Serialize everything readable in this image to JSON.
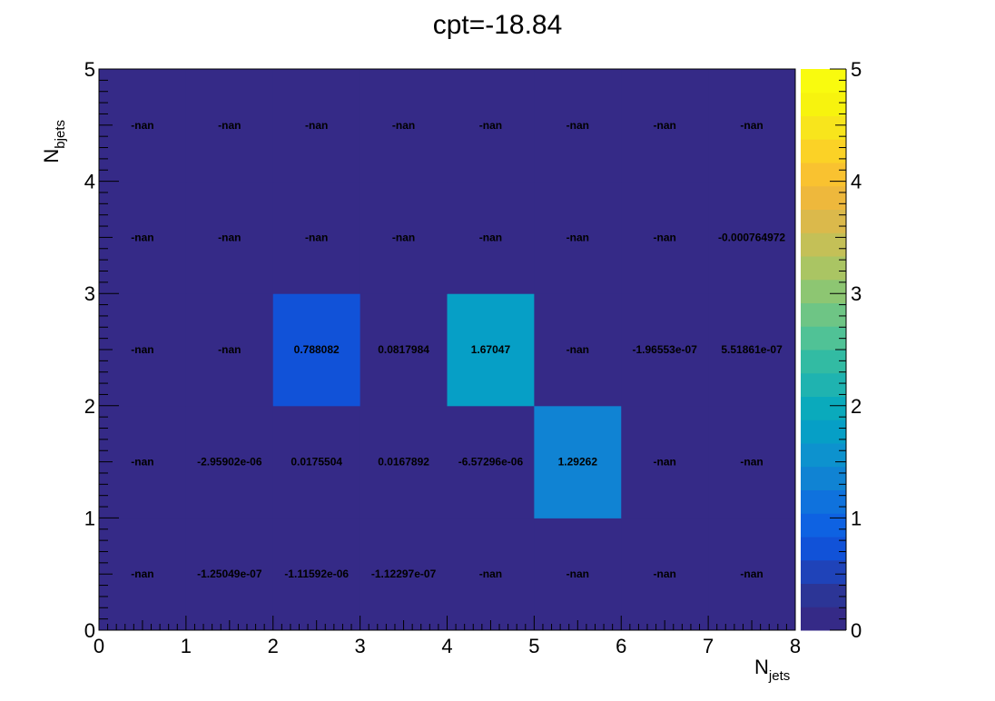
{
  "chart_data": {
    "type": "heatmap",
    "title": "cpt=-18.84",
    "xlabel": {
      "main": "N",
      "sub": "jets"
    },
    "ylabel": {
      "main": "N",
      "sub": "bjets"
    },
    "xlim": [
      0,
      8
    ],
    "ylim": [
      0,
      5
    ],
    "zlim": [
      0,
      5
    ],
    "x_ticks": [
      "0",
      "1",
      "2",
      "3",
      "4",
      "5",
      "6",
      "7",
      "8"
    ],
    "y_ticks": [
      "0",
      "1",
      "2",
      "3",
      "4",
      "5"
    ],
    "z_ticks": [
      "0",
      "1",
      "2",
      "3",
      "4",
      "5"
    ],
    "palette": [
      "#352a87",
      "#2c3596",
      "#1f43b9",
      "#1152d8",
      "#0e62e2",
      "#0f72dd",
      "#1083d3",
      "#0d92ce",
      "#069fc6",
      "#0aaabc",
      "#1fb3b0",
      "#32bba3",
      "#50c296",
      "#6ec585",
      "#8dc672",
      "#aac563",
      "#c4c057",
      "#dbb94b",
      "#eeb83c",
      "#f9c230",
      "#fbd226",
      "#f8e51c",
      "#f7f30e",
      "#f9fb0e"
    ],
    "cells": [
      {
        "x": 0,
        "y": 0,
        "value": null,
        "label": "-nan"
      },
      {
        "x": 1,
        "y": 0,
        "value": -1.25049e-07,
        "label": "-1.25049e-07"
      },
      {
        "x": 2,
        "y": 0,
        "value": -1.11592e-06,
        "label": "-1.11592e-06"
      },
      {
        "x": 3,
        "y": 0,
        "value": -1.12297e-07,
        "label": "-1.12297e-07"
      },
      {
        "x": 4,
        "y": 0,
        "value": null,
        "label": "-nan"
      },
      {
        "x": 5,
        "y": 0,
        "value": null,
        "label": "-nan"
      },
      {
        "x": 6,
        "y": 0,
        "value": null,
        "label": "-nan"
      },
      {
        "x": 7,
        "y": 0,
        "value": null,
        "label": "-nan"
      },
      {
        "x": 0,
        "y": 1,
        "value": null,
        "label": "-nan"
      },
      {
        "x": 1,
        "y": 1,
        "value": -2.95902e-06,
        "label": "-2.95902e-06"
      },
      {
        "x": 2,
        "y": 1,
        "value": 0.0175504,
        "label": "0.0175504"
      },
      {
        "x": 3,
        "y": 1,
        "value": 0.0167892,
        "label": "0.0167892"
      },
      {
        "x": 4,
        "y": 1,
        "value": -6.57296e-06,
        "label": "-6.57296e-06"
      },
      {
        "x": 5,
        "y": 1,
        "value": 1.29262,
        "label": "1.29262"
      },
      {
        "x": 6,
        "y": 1,
        "value": null,
        "label": "-nan"
      },
      {
        "x": 7,
        "y": 1,
        "value": null,
        "label": "-nan"
      },
      {
        "x": 0,
        "y": 2,
        "value": null,
        "label": "-nan"
      },
      {
        "x": 1,
        "y": 2,
        "value": null,
        "label": "-nan"
      },
      {
        "x": 2,
        "y": 2,
        "value": 0.788082,
        "label": "0.788082"
      },
      {
        "x": 3,
        "y": 2,
        "value": 0.0817984,
        "label": "0.0817984"
      },
      {
        "x": 4,
        "y": 2,
        "value": 1.67047,
        "label": "1.67047"
      },
      {
        "x": 5,
        "y": 2,
        "value": null,
        "label": "-nan"
      },
      {
        "x": 6,
        "y": 2,
        "value": -1.96553e-07,
        "label": "-1.96553e-07"
      },
      {
        "x": 7,
        "y": 2,
        "value": 5.51861e-07,
        "label": "5.51861e-07"
      },
      {
        "x": 0,
        "y": 3,
        "value": null,
        "label": "-nan"
      },
      {
        "x": 1,
        "y": 3,
        "value": null,
        "label": "-nan"
      },
      {
        "x": 2,
        "y": 3,
        "value": null,
        "label": "-nan"
      },
      {
        "x": 3,
        "y": 3,
        "value": null,
        "label": "-nan"
      },
      {
        "x": 4,
        "y": 3,
        "value": null,
        "label": "-nan"
      },
      {
        "x": 5,
        "y": 3,
        "value": null,
        "label": "-nan"
      },
      {
        "x": 6,
        "y": 3,
        "value": null,
        "label": "-nan"
      },
      {
        "x": 7,
        "y": 3,
        "value": -0.000764972,
        "label": "-0.000764972"
      },
      {
        "x": 0,
        "y": 4,
        "value": null,
        "label": "-nan"
      },
      {
        "x": 1,
        "y": 4,
        "value": null,
        "label": "-nan"
      },
      {
        "x": 2,
        "y": 4,
        "value": null,
        "label": "-nan"
      },
      {
        "x": 3,
        "y": 4,
        "value": null,
        "label": "-nan"
      },
      {
        "x": 4,
        "y": 4,
        "value": null,
        "label": "-nan"
      },
      {
        "x": 5,
        "y": 4,
        "value": null,
        "label": "-nan"
      },
      {
        "x": 6,
        "y": 4,
        "value": null,
        "label": "-nan"
      },
      {
        "x": 7,
        "y": 4,
        "value": null,
        "label": "-nan"
      }
    ]
  }
}
